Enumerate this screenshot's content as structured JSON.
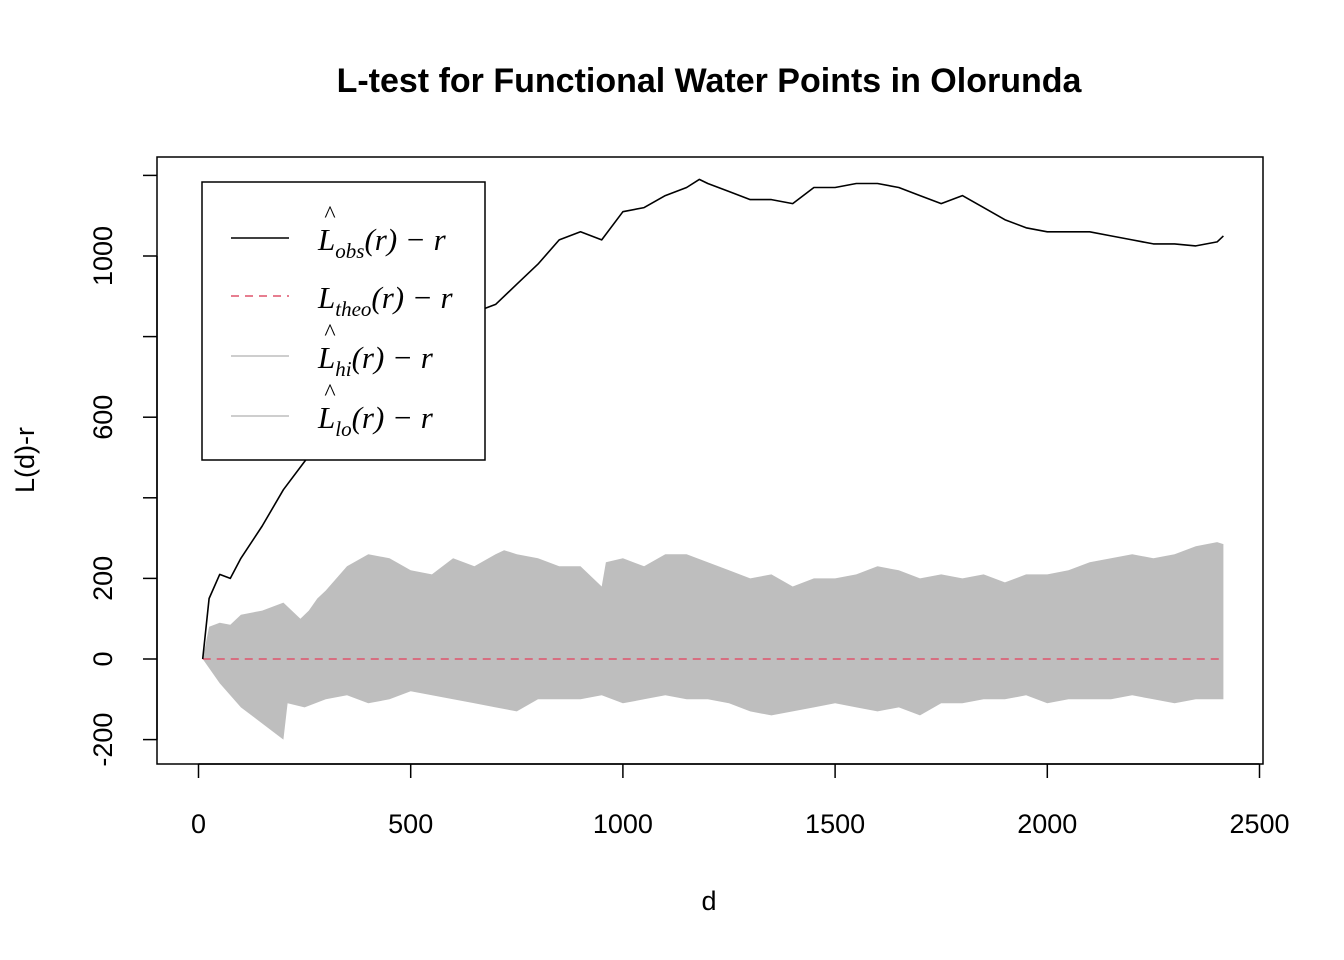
{
  "chart_data": {
    "type": "line",
    "title": "L-test for Functional Water Points in Olorunda",
    "xlabel": "d",
    "ylabel": "L(d)-r",
    "xlim": [
      -100,
      2500
    ],
    "ylim": [
      -250,
      1250
    ],
    "xticks": [
      0,
      500,
      1000,
      1500,
      2000,
      2500
    ],
    "yticks": [
      -200,
      0,
      200,
      600,
      1000
    ],
    "ytick_labels": [
      "-200",
      "0",
      "200",
      "600",
      "1000"
    ],
    "legend_position": "top-left",
    "legend": [
      {
        "main": "L",
        "hat": "^",
        "sub": "obs",
        "tail": "(r) − r",
        "style": "solid",
        "color": "#000000"
      },
      {
        "main": "L",
        "hat": "",
        "sub": "theo",
        "tail": "(r) − r",
        "style": "dashed",
        "color": "#DF536B"
      },
      {
        "main": "L",
        "hat": "^",
        "sub": "hi",
        "tail": "(r) − r",
        "style": "solid",
        "color": "#BEBEBE"
      },
      {
        "main": "L",
        "hat": "^",
        "sub": "lo",
        "tail": "(r) − r",
        "style": "solid",
        "color": "#BEBEBE"
      }
    ],
    "series": [
      {
        "name": "obs",
        "color": "#000000",
        "x": [
          10,
          25,
          50,
          75,
          100,
          150,
          200,
          250,
          300,
          350,
          400,
          450,
          500,
          550,
          600,
          650,
          700,
          750,
          800,
          850,
          900,
          950,
          1000,
          1050,
          1100,
          1150,
          1180,
          1200,
          1250,
          1300,
          1350,
          1400,
          1450,
          1500,
          1550,
          1600,
          1650,
          1700,
          1750,
          1800,
          1850,
          1900,
          1950,
          2000,
          2050,
          2100,
          2150,
          2200,
          2250,
          2300,
          2350,
          2400,
          2415
        ],
        "y": [
          0,
          150,
          210,
          200,
          250,
          330,
          420,
          490,
          560,
          620,
          680,
          700,
          720,
          760,
          780,
          860,
          880,
          930,
          980,
          1040,
          1060,
          1040,
          1110,
          1120,
          1150,
          1170,
          1190,
          1180,
          1160,
          1140,
          1140,
          1130,
          1170,
          1170,
          1180,
          1180,
          1170,
          1150,
          1130,
          1150,
          1120,
          1090,
          1070,
          1060,
          1060,
          1060,
          1050,
          1040,
          1030,
          1030,
          1025,
          1035,
          1050
        ]
      },
      {
        "name": "theo",
        "color": "#DF536B",
        "x": [
          10,
          2415
        ],
        "y": [
          0,
          0
        ]
      },
      {
        "name": "hi",
        "color": "#BEBEBE",
        "x": [
          10,
          25,
          50,
          75,
          100,
          150,
          200,
          240,
          260,
          280,
          300,
          350,
          400,
          450,
          500,
          550,
          600,
          650,
          700,
          720,
          750,
          800,
          850,
          900,
          950,
          960,
          1000,
          1050,
          1100,
          1150,
          1200,
          1250,
          1300,
          1350,
          1400,
          1450,
          1500,
          1550,
          1600,
          1650,
          1700,
          1750,
          1800,
          1850,
          1900,
          1950,
          2000,
          2050,
          2100,
          2150,
          2200,
          2250,
          2300,
          2350,
          2400,
          2415
        ],
        "y": [
          0,
          80,
          90,
          85,
          110,
          120,
          140,
          100,
          120,
          150,
          170,
          230,
          260,
          250,
          220,
          210,
          250,
          230,
          260,
          270,
          260,
          250,
          230,
          230,
          180,
          240,
          250,
          230,
          260,
          260,
          240,
          220,
          200,
          210,
          180,
          200,
          200,
          210,
          230,
          220,
          200,
          210,
          200,
          210,
          190,
          210,
          210,
          220,
          240,
          250,
          260,
          250,
          260,
          280,
          290,
          285
        ]
      },
      {
        "name": "lo",
        "color": "#BEBEBE",
        "x": [
          10,
          50,
          100,
          150,
          200,
          210,
          250,
          300,
          350,
          400,
          450,
          500,
          550,
          600,
          650,
          700,
          750,
          800,
          850,
          900,
          950,
          1000,
          1050,
          1100,
          1150,
          1200,
          1250,
          1300,
          1350,
          1400,
          1450,
          1500,
          1550,
          1600,
          1650,
          1700,
          1750,
          1800,
          1850,
          1900,
          1950,
          2000,
          2050,
          2100,
          2150,
          2200,
          2250,
          2300,
          2350,
          2400,
          2415
        ],
        "y": [
          0,
          -60,
          -120,
          -160,
          -200,
          -110,
          -120,
          -100,
          -90,
          -110,
          -100,
          -80,
          -90,
          -100,
          -110,
          -120,
          -130,
          -100,
          -100,
          -100,
          -90,
          -110,
          -100,
          -90,
          -100,
          -100,
          -110,
          -130,
          -140,
          -130,
          -120,
          -110,
          -120,
          -130,
          -120,
          -140,
          -110,
          -110,
          -100,
          -100,
          -90,
          -110,
          -100,
          -100,
          -100,
          -90,
          -100,
          -110,
          -100,
          -100,
          -100
        ]
      }
    ]
  }
}
